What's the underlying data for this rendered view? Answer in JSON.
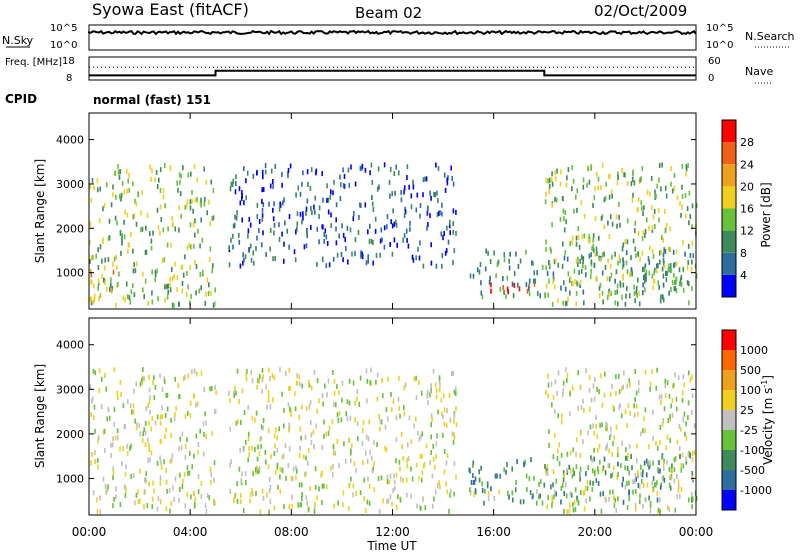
{
  "header": {
    "station": "Syowa East (fitACF)",
    "beam": "Beam 02",
    "date": "02/Oct/2009",
    "cpid_label": "CPID",
    "cpid_value": "normal (fast) 151"
  },
  "colors": {
    "power": [
      "#0000ff",
      "#2e6e9e",
      "#3d8a5a",
      "#66c23c",
      "#f0d020",
      "#f0a020",
      "#f06018",
      "#ff0000"
    ],
    "velocity": [
      "#ff0000",
      "#ff6600",
      "#f0a020",
      "#f0d020",
      "#c0c0c0",
      "#66c23c",
      "#3d8a5a",
      "#2e6e9e",
      "#0000ff"
    ]
  },
  "chart_data": [
    {
      "type": "line",
      "panel": "noise",
      "left_label": "N.Sky",
      "right_label": "N.Search",
      "left_ticks": [
        "10^5",
        "10^0"
      ],
      "right_ticks": [
        "10^5",
        "10^0"
      ],
      "xlim": [
        "00:00",
        "24:00"
      ]
    },
    {
      "type": "line",
      "panel": "frequency",
      "left_label": "Freq. [MHz]",
      "right_label": "Nave",
      "left_ticks": [
        18,
        8
      ],
      "right_ticks": [
        60,
        0
      ],
      "series": [
        {
          "name": "Freq.",
          "x": [
            0,
            5,
            5,
            18,
            18,
            24
          ],
          "y": [
            10,
            10,
            12,
            12,
            10,
            10
          ]
        },
        {
          "name": "Nave",
          "x": [
            0,
            24
          ],
          "y": [
            33,
            33
          ]
        }
      ]
    },
    {
      "type": "heatmap",
      "panel": "power",
      "xlabel": "",
      "ylabel": "Slant Range [km]",
      "xlim": [
        0,
        24
      ],
      "ylim": [
        180,
        4600
      ],
      "yticks": [
        1000,
        2000,
        3000,
        4000
      ],
      "colorbar_label": "Power [dB]",
      "colorbar_ticks": [
        "4",
        "8",
        "12",
        "16",
        "20",
        "24",
        "28"
      ],
      "regions": [
        {
          "t0": 0,
          "t1": 5,
          "r0": 300,
          "r1": 3500,
          "level": 3
        },
        {
          "t0": 0,
          "t1": 1,
          "r0": 300,
          "r1": 1100,
          "level": 5
        },
        {
          "t0": 5.5,
          "t1": 14.5,
          "r0": 1200,
          "r1": 3500,
          "level": 1
        },
        {
          "t0": 15,
          "t1": 18,
          "r0": 600,
          "r1": 800,
          "level": 7
        },
        {
          "t0": 15,
          "t1": 24,
          "r0": 500,
          "r1": 1600,
          "level": 2
        },
        {
          "t0": 18,
          "t1": 24,
          "r0": 300,
          "r1": 3500,
          "level": 3
        }
      ]
    },
    {
      "type": "heatmap",
      "panel": "velocity",
      "xlabel": "Time UT",
      "ylabel": "Slant Range [km]",
      "xlim": [
        0,
        24
      ],
      "ylim": [
        180,
        4600
      ],
      "yticks": [
        1000,
        2000,
        3000,
        4000
      ],
      "xticks": [
        "00:00",
        "04:00",
        "08:00",
        "12:00",
        "16:00",
        "20:00",
        "00:00"
      ],
      "colorbar_label": "Velocity [m s-1]",
      "colorbar_ticks": [
        "1000",
        "500",
        "100",
        "25",
        "-25",
        "-100",
        "-500",
        "-1000"
      ],
      "regions": [
        {
          "t0": 0,
          "t1": 5,
          "r0": 300,
          "r1": 3500,
          "level": 4
        },
        {
          "t0": 5.5,
          "t1": 14.5,
          "r0": 300,
          "r1": 3500,
          "level": 4
        },
        {
          "t0": 14,
          "t1": 18,
          "r0": 600,
          "r1": 800,
          "level": 4
        },
        {
          "t0": 15,
          "t1": 24,
          "r0": 500,
          "r1": 1600,
          "level": 6
        },
        {
          "t0": 18,
          "t1": 24,
          "r0": 300,
          "r1": 3500,
          "level": 4
        }
      ]
    }
  ]
}
